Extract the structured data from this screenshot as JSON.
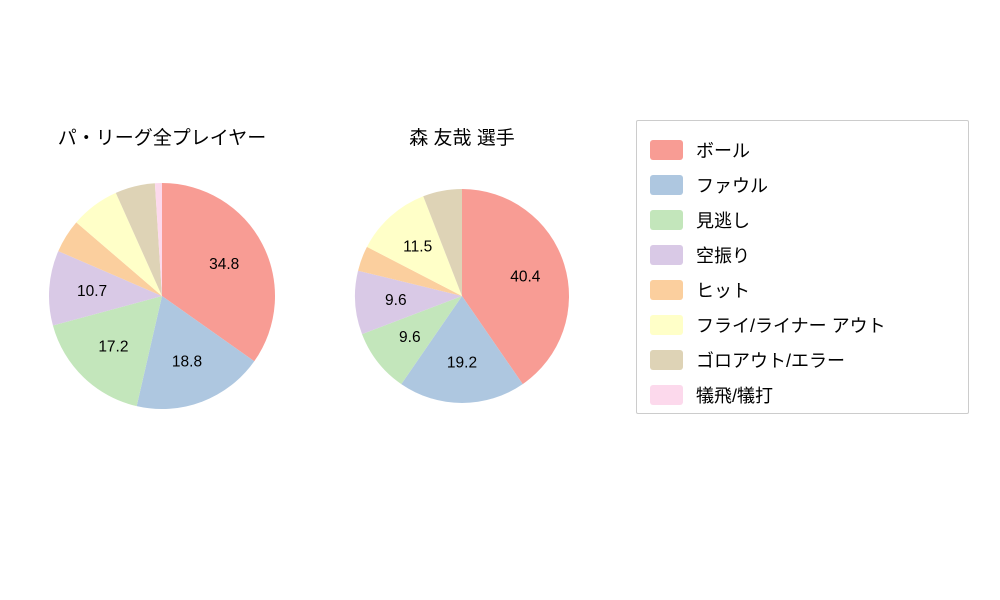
{
  "chart_data": [
    {
      "type": "pie",
      "title": "パ・リーグ全プレイヤー",
      "categories": [
        "ボール",
        "ファウル",
        "見逃し",
        "空振り",
        "ヒット",
        "フライ/ライナー アウト",
        "ゴロアウト/エラー",
        "犠飛/犠打"
      ],
      "values": [
        34.8,
        18.8,
        17.2,
        10.7,
        4.8,
        7.0,
        5.7,
        1.0
      ],
      "data_labels": [
        "34.8",
        "18.8",
        "17.2",
        "10.7",
        "",
        "",
        "",
        ""
      ],
      "start_angle_deg": 90,
      "direction": "clockwise",
      "radius_px": 113
    },
    {
      "type": "pie",
      "title": "森 友哉  選手",
      "categories": [
        "ボール",
        "ファウル",
        "見逃し",
        "空振り",
        "ヒット",
        "フライ/ライナー アウト",
        "ゴロアウト/エラー",
        "犠飛/犠打"
      ],
      "values": [
        40.4,
        19.2,
        9.6,
        9.6,
        3.8,
        11.5,
        5.9,
        0.0
      ],
      "data_labels": [
        "40.4",
        "19.2",
        "9.6",
        "9.6",
        "",
        "11.5",
        "",
        ""
      ],
      "start_angle_deg": 90,
      "direction": "clockwise",
      "radius_px": 107
    }
  ],
  "legend": {
    "items": [
      {
        "label": "ボール",
        "color": "#f89c94"
      },
      {
        "label": "ファウル",
        "color": "#aec7e0"
      },
      {
        "label": "見逃し",
        "color": "#c3e6bb"
      },
      {
        "label": "空振り",
        "color": "#d9c9e6"
      },
      {
        "label": "ヒット",
        "color": "#fbcf9e"
      },
      {
        "label": "フライ/ライナー アウト",
        "color": "#ffffc8"
      },
      {
        "label": "ゴロアウト/エラー",
        "color": "#ded3b6"
      },
      {
        "label": "犠飛/犠打",
        "color": "#fcd9ec"
      }
    ]
  }
}
